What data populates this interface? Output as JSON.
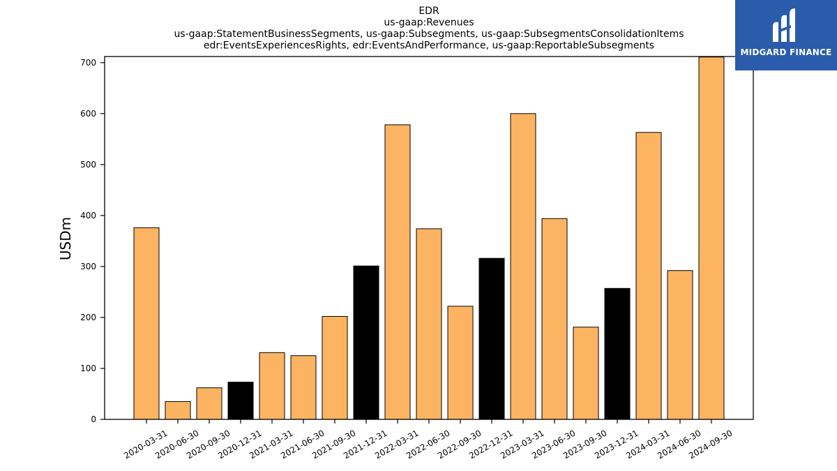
{
  "brand": {
    "name": "MIDGARD FINANCE",
    "background": "#2a5cab",
    "icon": "midgard-logo-icon"
  },
  "chart_data": {
    "type": "bar",
    "title_lines": [
      "EDR",
      "us-gaap:Revenues",
      "us-gaap:StatementBusinessSegments, us-gaap:Subsegments, us-gaap:SubsegmentsConsolidationItems",
      "edr:EventsExperiencesRights, edr:EventsAndPerformance, us-gaap:ReportableSubsegments"
    ],
    "xlabel": "",
    "ylabel": "USDm",
    "ylim": [
      0,
      712
    ],
    "yticks": [
      0,
      100,
      200,
      300,
      400,
      500,
      600,
      700
    ],
    "categories": [
      "2020-03-31",
      "2020-06-30",
      "2020-09-30",
      "2020-12-31",
      "2021-03-31",
      "2021-06-30",
      "2021-09-30",
      "2021-12-31",
      "2022-03-31",
      "2022-06-30",
      "2022-09-30",
      "2022-12-31",
      "2023-03-31",
      "2023-06-30",
      "2023-09-30",
      "2023-12-31",
      "2024-03-31",
      "2024-06-30",
      "2024-09-30"
    ],
    "values": [
      376,
      35,
      62,
      73,
      131,
      125,
      202,
      301,
      578,
      374,
      222,
      316,
      600,
      394,
      181,
      257,
      563,
      292,
      711
    ],
    "bar_colors": [
      "#fdb462",
      "#fdb462",
      "#fdb462",
      "#000000",
      "#fdb462",
      "#fdb462",
      "#fdb462",
      "#000000",
      "#fdb462",
      "#fdb462",
      "#fdb462",
      "#000000",
      "#fdb462",
      "#fdb462",
      "#fdb462",
      "#000000",
      "#fdb462",
      "#fdb462",
      "#fdb462"
    ],
    "grid": false,
    "legend": "none"
  }
}
